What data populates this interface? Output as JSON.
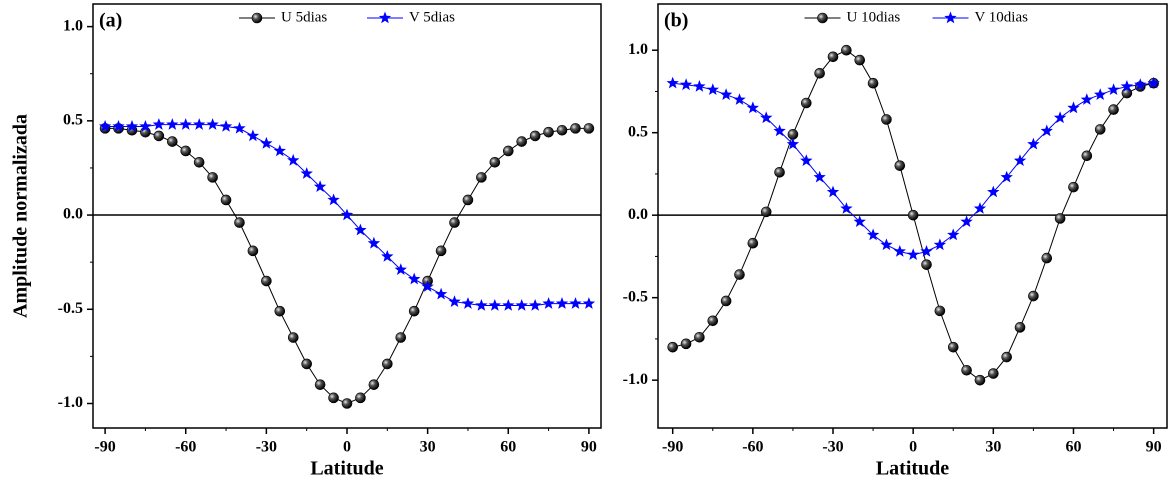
{
  "chart_data": [
    {
      "type": "line",
      "panel_label": "(a)",
      "x_label": "Latitude",
      "y_label": "Amplitude normalizada",
      "x": [
        -90,
        -85,
        -80,
        -75,
        -70,
        -65,
        -60,
        -55,
        -50,
        -45,
        -40,
        -35,
        -30,
        -25,
        -20,
        -15,
        -10,
        -5,
        0,
        5,
        10,
        15,
        20,
        25,
        30,
        35,
        40,
        45,
        50,
        55,
        60,
        65,
        70,
        75,
        80,
        85,
        90
      ],
      "series": [
        {
          "name": "U 5dias",
          "color": "#000000",
          "marker": "sphere",
          "values": [
            0.46,
            0.46,
            0.45,
            0.44,
            0.42,
            0.39,
            0.34,
            0.28,
            0.2,
            0.08,
            -0.04,
            -0.19,
            -0.35,
            -0.51,
            -0.65,
            -0.79,
            -0.9,
            -0.97,
            -1.0,
            -0.97,
            -0.9,
            -0.79,
            -0.65,
            -0.51,
            -0.35,
            -0.19,
            -0.04,
            0.08,
            0.2,
            0.28,
            0.34,
            0.39,
            0.42,
            0.44,
            0.45,
            0.46,
            0.46
          ]
        },
        {
          "name": "V 5dias",
          "color": "#0000ff",
          "marker": "star",
          "values": [
            0.47,
            0.47,
            0.47,
            0.47,
            0.48,
            0.48,
            0.48,
            0.48,
            0.48,
            0.47,
            0.46,
            0.42,
            0.38,
            0.34,
            0.29,
            0.22,
            0.15,
            0.08,
            0.0,
            -0.08,
            -0.15,
            -0.22,
            -0.29,
            -0.34,
            -0.38,
            -0.42,
            -0.46,
            -0.47,
            -0.48,
            -0.48,
            -0.48,
            -0.48,
            -0.48,
            -0.47,
            -0.47,
            -0.47,
            -0.47
          ]
        }
      ],
      "xlim": [
        -94.5,
        94.5
      ],
      "xticks": [
        -90,
        -60,
        -30,
        0,
        30,
        60,
        90
      ],
      "ylim": [
        -1.13,
        1.12
      ],
      "yticks": [
        {
          "value": -1,
          "label": "-1.0"
        },
        {
          "value": -0.5,
          "label": "-0.5"
        },
        {
          "value": 0,
          "label": "0.0"
        },
        {
          "value": 0.5,
          "label": "0.5"
        },
        {
          "value": 1,
          "label": "1.0"
        }
      ],
      "zero_line": true,
      "legend": "top"
    },
    {
      "type": "line",
      "panel_label": "(b)",
      "x_label": "Latitude",
      "x": [
        -90,
        -85,
        -80,
        -75,
        -70,
        -65,
        -60,
        -55,
        -50,
        -45,
        -40,
        -35,
        -30,
        -25,
        -20,
        -15,
        -10,
        -5,
        0,
        5,
        10,
        15,
        20,
        25,
        30,
        35,
        40,
        45,
        50,
        55,
        60,
        65,
        70,
        75,
        80,
        85,
        90
      ],
      "series": [
        {
          "name": "U 10dias",
          "color": "#000000",
          "marker": "sphere",
          "values": [
            -0.8,
            -0.78,
            -0.74,
            -0.64,
            -0.52,
            -0.36,
            -0.17,
            0.02,
            0.26,
            0.49,
            0.68,
            0.86,
            0.96,
            1.0,
            0.94,
            0.8,
            0.58,
            0.3,
            0.0,
            -0.3,
            -0.58,
            -0.8,
            -0.94,
            -1.0,
            -0.96,
            -0.86,
            -0.68,
            -0.49,
            -0.26,
            -0.02,
            0.17,
            0.36,
            0.52,
            0.64,
            0.74,
            0.78,
            0.8
          ]
        },
        {
          "name": "V 10dias",
          "color": "#0000ff",
          "marker": "star",
          "values": [
            0.8,
            0.79,
            0.78,
            0.76,
            0.73,
            0.7,
            0.65,
            0.59,
            0.51,
            0.43,
            0.33,
            0.23,
            0.14,
            0.04,
            -0.04,
            -0.12,
            -0.18,
            -0.22,
            -0.24,
            -0.22,
            -0.18,
            -0.12,
            -0.04,
            0.04,
            0.14,
            0.23,
            0.33,
            0.43,
            0.51,
            0.59,
            0.65,
            0.7,
            0.73,
            0.76,
            0.78,
            0.79,
            0.8
          ]
        }
      ],
      "xlim": [
        -95.5,
        95
      ],
      "xticks": [
        -90,
        -60,
        -30,
        0,
        30,
        60,
        90
      ],
      "ylim": [
        -1.29,
        1.28
      ],
      "yticks": [
        {
          "value": -1,
          "label": "-1.0"
        },
        {
          "value": -0.5,
          "label": "-0.5"
        },
        {
          "value": 0,
          "label": "0.0"
        },
        {
          "value": 0.5,
          "label": "0.5"
        },
        {
          "value": 1,
          "label": "1.0"
        }
      ],
      "zero_line": true,
      "legend": "top"
    }
  ]
}
